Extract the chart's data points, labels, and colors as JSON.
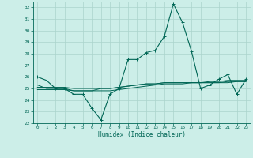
{
  "xlabel": "Humidex (Indice chaleur)",
  "bg_color": "#cceee8",
  "grid_color": "#aad4cc",
  "line_color": "#006655",
  "xlim": [
    -0.5,
    23.5
  ],
  "ylim": [
    22,
    32.5
  ],
  "yticks": [
    22,
    23,
    24,
    25,
    26,
    27,
    28,
    29,
    30,
    31,
    32
  ],
  "xticks": [
    0,
    1,
    2,
    3,
    4,
    5,
    6,
    7,
    8,
    9,
    10,
    11,
    12,
    13,
    14,
    15,
    16,
    17,
    18,
    19,
    20,
    21,
    22,
    23
  ],
  "main_y": [
    26.0,
    25.7,
    25.0,
    25.0,
    24.5,
    24.5,
    23.3,
    22.3,
    24.5,
    25.0,
    27.5,
    27.5,
    28.1,
    28.3,
    29.5,
    32.3,
    30.7,
    28.2,
    25.0,
    25.3,
    25.8,
    26.2,
    24.5,
    25.8
  ],
  "line2_y": [
    25.3,
    25.0,
    25.0,
    25.0,
    24.8,
    24.8,
    24.8,
    25.0,
    25.0,
    25.1,
    25.2,
    25.3,
    25.4,
    25.4,
    25.5,
    25.5,
    25.5,
    25.5,
    25.5,
    25.5,
    25.5,
    25.6,
    25.6,
    25.6
  ],
  "line3_y": [
    25.1,
    25.1,
    25.1,
    25.1,
    25.0,
    25.0,
    25.0,
    25.0,
    25.0,
    25.1,
    25.2,
    25.3,
    25.4,
    25.4,
    25.5,
    25.5,
    25.5,
    25.5,
    25.5,
    25.6,
    25.6,
    25.7,
    25.7,
    25.7
  ],
  "line4_y": [
    24.9,
    24.9,
    24.9,
    24.9,
    24.8,
    24.8,
    24.8,
    24.8,
    24.8,
    24.9,
    25.0,
    25.1,
    25.2,
    25.3,
    25.4,
    25.4,
    25.4,
    25.5,
    25.5,
    25.5,
    25.5,
    25.5,
    25.6,
    25.6
  ]
}
